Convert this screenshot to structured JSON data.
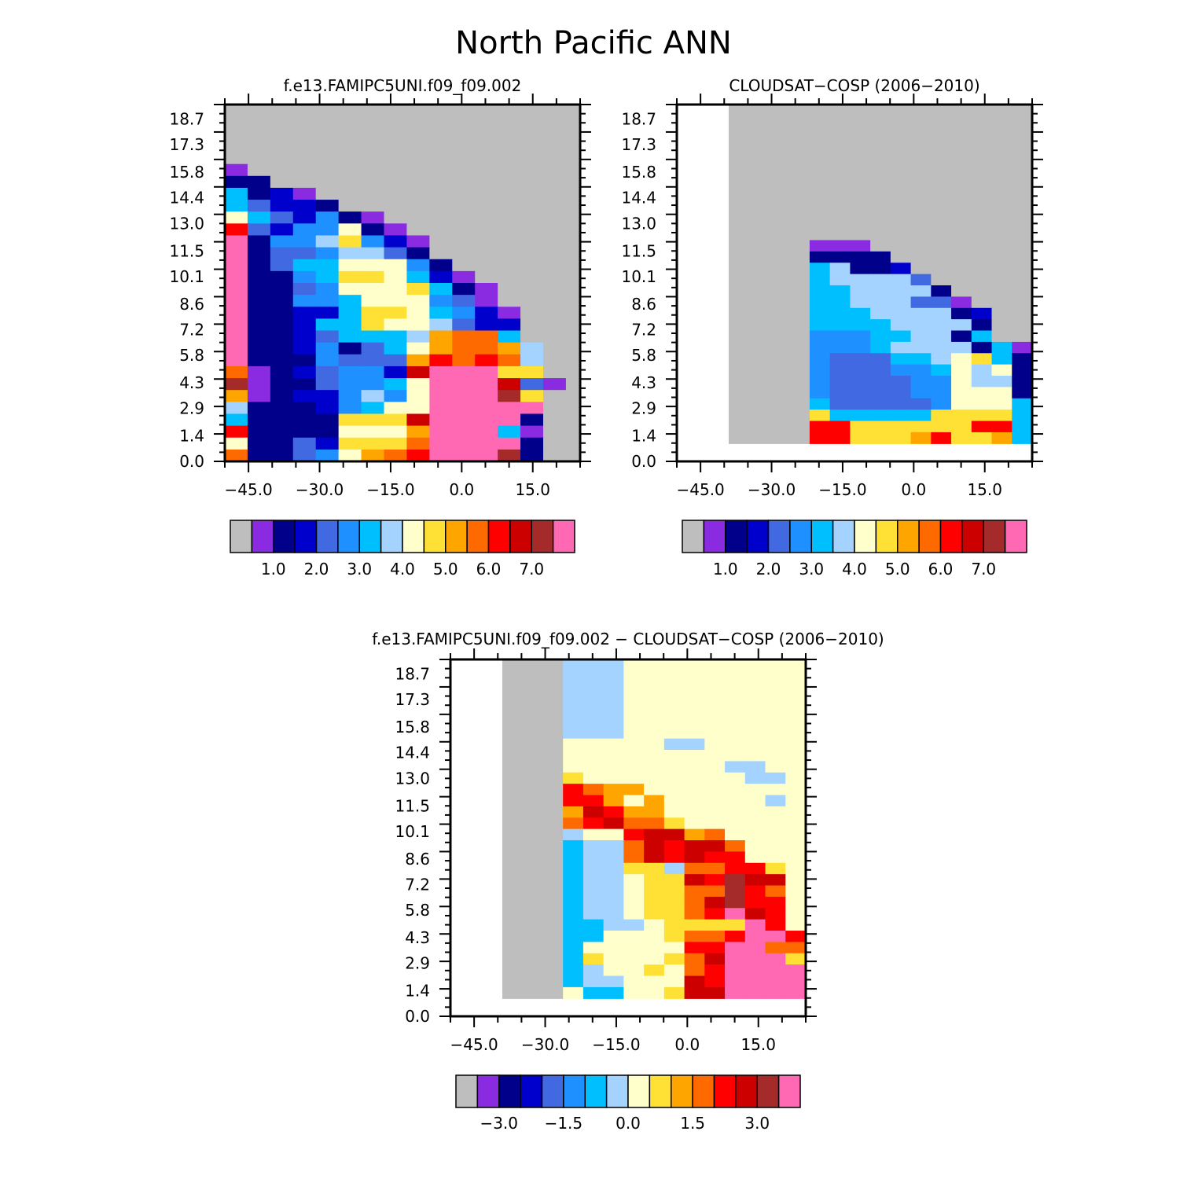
{
  "page_title": "North Pacific ANN",
  "palette": [
    "#bebebe",
    "#8a2be2",
    "#00008b",
    "#0000cd",
    "#4169e1",
    "#1e90ff",
    "#00bfff",
    "#a4d3ff",
    "#ffffcc",
    "#ffe135",
    "#ffa500",
    "#ff6a00",
    "#ff0000",
    "#cd0000",
    "#a52a2a",
    "#ff69b4"
  ],
  "chart_data": [
    {
      "type": "heatmap",
      "title": "f.e13.FAMIPC5UNI.f09_f09.002",
      "xlim": [
        -50,
        25
      ],
      "ylim": [
        0,
        19.5
      ],
      "x_ticks": [
        -45,
        -30,
        -15,
        0,
        15
      ],
      "x_tick_labels": [
        "−45.0",
        "−30.0",
        "−15.0",
        "0.0",
        "15.0"
      ],
      "y_ticks": [
        0,
        1.4,
        2.9,
        4.3,
        5.8,
        7.2,
        8.6,
        10.1,
        11.5,
        13.0,
        14.4,
        15.8,
        17.3,
        18.7
      ],
      "y_tick_labels": [
        "0.0",
        "1.4",
        "2.9",
        "4.3",
        "5.8",
        "7.2",
        "8.6",
        "10.1",
        "11.5",
        "13.0",
        "14.4",
        "15.8",
        "17.3",
        "18.7"
      ],
      "colorbar_labels": [
        "1.0",
        "2.0",
        "3.0",
        "4.0",
        "5.0",
        "6.0",
        "7.0"
      ],
      "colorbar_levels": [
        1.0,
        2.0,
        3.0,
        4.0,
        5.0,
        6.0,
        7.0
      ]
    },
    {
      "type": "heatmap",
      "title": "CLOUDSAT−COSP (2006−2010)",
      "xlim": [
        -50,
        25
      ],
      "ylim": [
        0,
        19.5
      ],
      "x_ticks": [
        -45,
        -30,
        -15,
        0,
        15
      ],
      "x_tick_labels": [
        "−45.0",
        "−30.0",
        "−15.0",
        "0.0",
        "15.0"
      ],
      "y_ticks": [
        0,
        1.4,
        2.9,
        4.3,
        5.8,
        7.2,
        8.6,
        10.1,
        11.5,
        13.0,
        14.4,
        15.8,
        17.3,
        18.7
      ],
      "y_tick_labels": [
        "0.0",
        "1.4",
        "2.9",
        "4.3",
        "5.8",
        "7.2",
        "8.6",
        "10.1",
        "11.5",
        "13.0",
        "14.4",
        "15.8",
        "17.3",
        "18.7"
      ],
      "colorbar_labels": [
        "1.0",
        "2.0",
        "3.0",
        "4.0",
        "5.0",
        "6.0",
        "7.0"
      ],
      "colorbar_levels": [
        1.0,
        2.0,
        3.0,
        4.0,
        5.0,
        6.0,
        7.0
      ]
    },
    {
      "type": "heatmap",
      "title": "f.e13.FAMIPC5UNI.f09_f09.002 − CLOUDSAT−COSP (2006−2010)",
      "xlim": [
        -50,
        25
      ],
      "ylim": [
        0,
        19.5
      ],
      "x_ticks": [
        -45,
        -30,
        -15,
        0,
        15
      ],
      "x_tick_labels": [
        "−45.0",
        "−30.0",
        "−15.0",
        "0.0",
        "15.0"
      ],
      "y_ticks": [
        0,
        1.4,
        2.9,
        4.3,
        5.8,
        7.2,
        8.6,
        10.1,
        11.5,
        13.0,
        14.4,
        15.8,
        17.3,
        18.7
      ],
      "y_tick_labels": [
        "0.0",
        "1.4",
        "2.9",
        "4.3",
        "5.8",
        "7.2",
        "8.6",
        "10.1",
        "11.5",
        "13.0",
        "14.4",
        "15.8",
        "17.3",
        "18.7"
      ],
      "colorbar_labels": [
        "−3.0",
        "−1.5",
        "0.0",
        "1.5",
        "3.0"
      ],
      "colorbar_levels": [
        -3.0,
        -1.5,
        0.0,
        1.5,
        3.0
      ]
    }
  ]
}
